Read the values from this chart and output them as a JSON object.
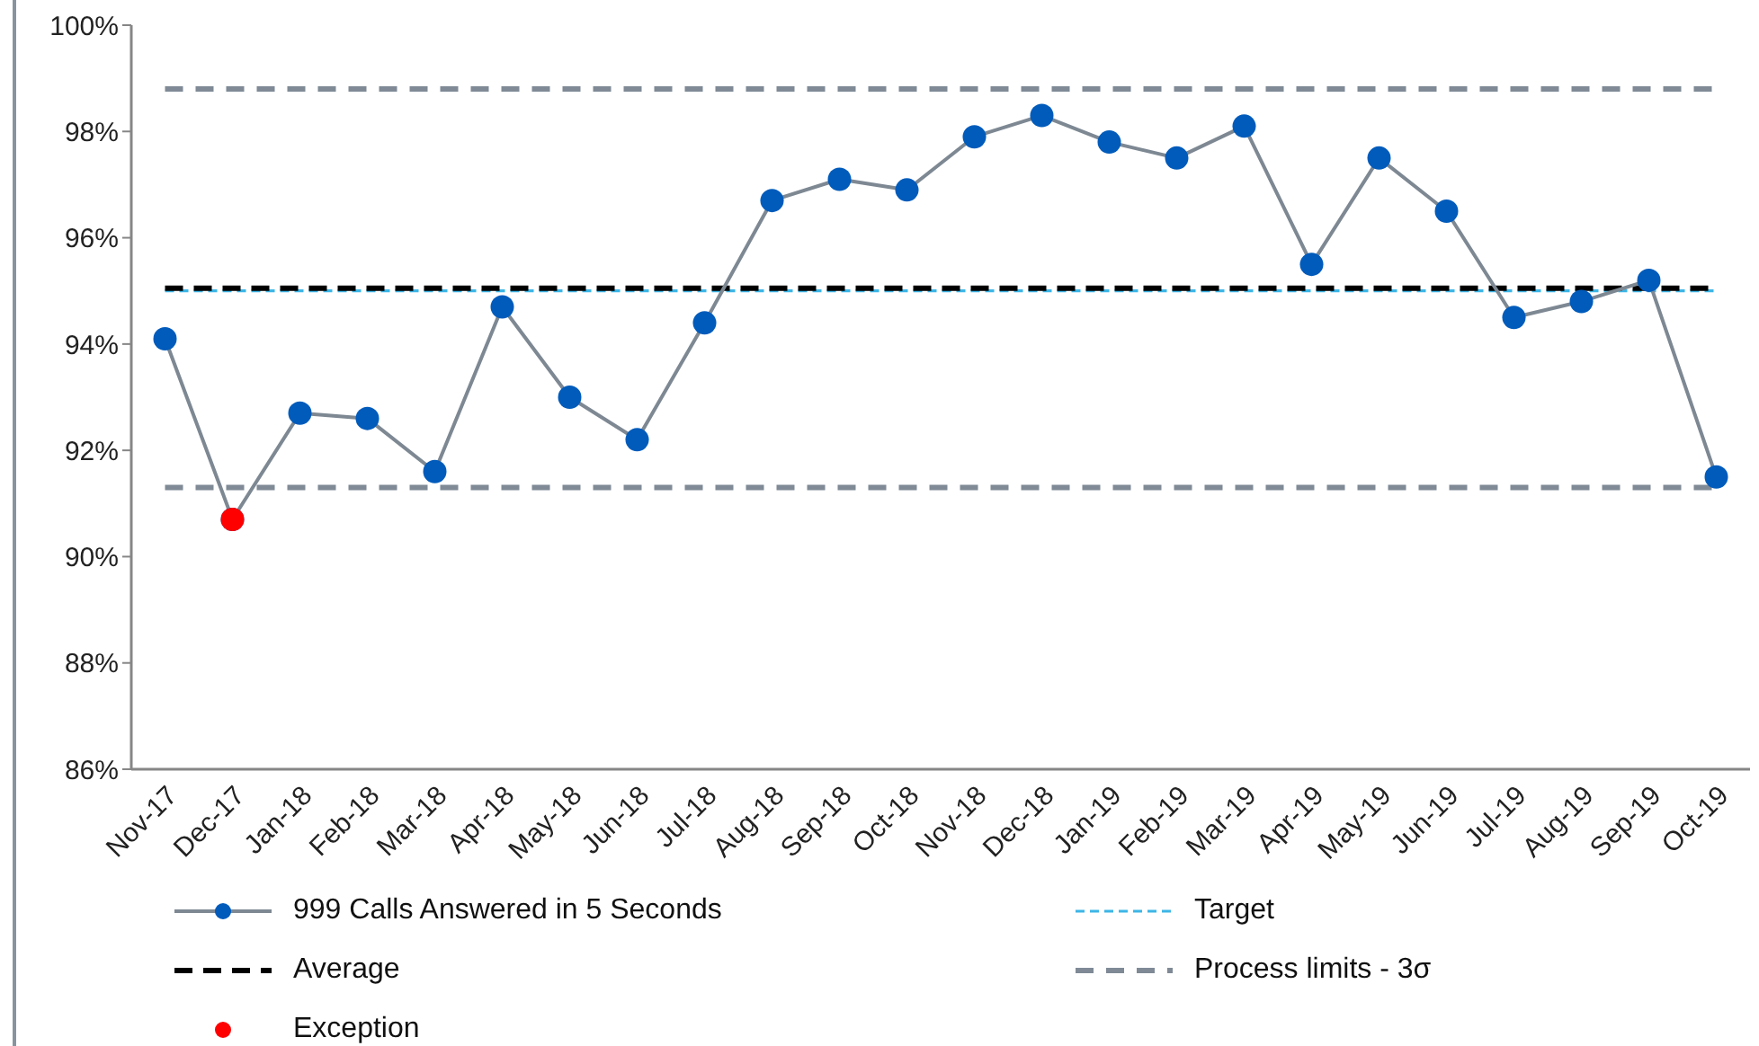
{
  "chart_data": {
    "type": "line",
    "categories": [
      "Nov-17",
      "Dec-17",
      "Jan-18",
      "Feb-18",
      "Mar-18",
      "Apr-18",
      "May-18",
      "Jun-18",
      "Jul-18",
      "Aug-18",
      "Sep-18",
      "Oct-18",
      "Nov-18",
      "Dec-18",
      "Jan-19",
      "Feb-19",
      "Mar-19",
      "Apr-19",
      "May-19",
      "Jun-19",
      "Jul-19",
      "Aug-19",
      "Sep-19",
      "Oct-19"
    ],
    "series": [
      {
        "name": "999 Calls Answered in 5 Seconds",
        "color": "#7d8893",
        "colors": [
          "#005bbb",
          "#005bbb",
          "#005bbb",
          "#005bbb",
          "#005bbb",
          "#005bbb",
          "#005bbb",
          "#005bbb",
          "#005bbb",
          "#005bbb",
          "#005bbb",
          "#005bbb",
          "#005bbb",
          "#005bbb",
          "#005bbb",
          "#005bbb",
          "#005bbb",
          "#005bbb",
          "#005bbb",
          "#005bbb",
          "#005bbb",
          "#005bbb",
          "#005bbb",
          "#005bbb"
        ],
        "values": [
          94.1,
          90.7,
          92.7,
          92.6,
          91.6,
          94.7,
          93.0,
          92.2,
          94.4,
          96.7,
          97.1,
          96.9,
          97.9,
          98.3,
          97.8,
          97.5,
          98.1,
          95.5,
          97.5,
          96.5,
          94.5,
          94.8,
          95.2,
          91.5
        ]
      },
      {
        "name": "Exception",
        "type": "scatter",
        "color": "#ff0000",
        "values": [
          null,
          90.7,
          null,
          null,
          null,
          null,
          null,
          null,
          null,
          null,
          null,
          null,
          null,
          null,
          null,
          null,
          null,
          null,
          null,
          null,
          null,
          null,
          null,
          null
        ]
      }
    ],
    "ref_lines": [
      {
        "axis": "y",
        "value": 95.0,
        "label": "Target",
        "color": "#3db5e6",
        "line_style": "dashed"
      },
      {
        "axis": "y",
        "value": 95.05,
        "label": "Average",
        "color": "#000000",
        "line_style": "dashed"
      },
      {
        "axis": "y",
        "value": 98.8,
        "label": "Process limits - 3σ",
        "color": "#7f8a96",
        "line_style": "dashed"
      },
      {
        "axis": "y",
        "value": 91.3,
        "color": "#7f8a96",
        "line_style": "dashed"
      }
    ],
    "ylim": [
      86,
      100
    ],
    "yticks": [
      {
        "value": 86,
        "label": "86%"
      },
      {
        "value": 88,
        "label": "88%"
      },
      {
        "value": 90,
        "label": "90%"
      },
      {
        "value": 92,
        "label": "92%"
      },
      {
        "value": 94,
        "label": "94%"
      },
      {
        "value": 96,
        "label": "96%"
      },
      {
        "value": 98,
        "label": "98%"
      },
      {
        "value": 100,
        "label": "100%"
      }
    ],
    "marker": "circle",
    "legend": "bottom"
  }
}
